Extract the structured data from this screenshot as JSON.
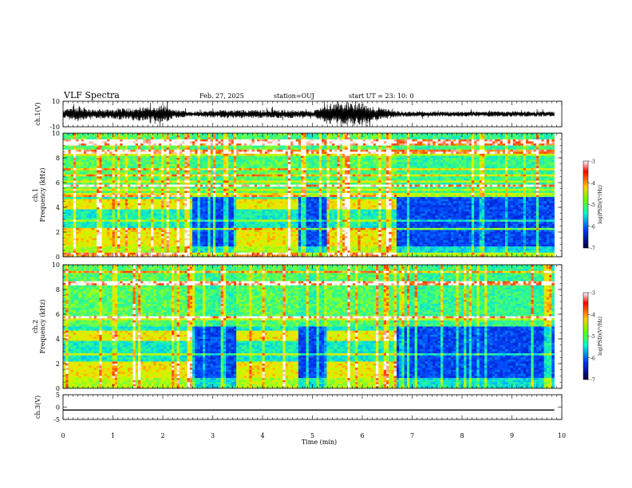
{
  "header": {
    "title": "VLF Spectra",
    "date": "Feb. 27, 2025",
    "station": "station=OUJ",
    "start": "start  UT  =   23: 10: 0"
  },
  "chart_data": [
    {
      "id": "ch1-waveform",
      "type": "line",
      "ylabel": "ch.1(V)",
      "ylim": [
        -10,
        10
      ],
      "yticks": [
        "10",
        "-10"
      ],
      "xlim": [
        0,
        10
      ],
      "data_end_min": 9.85,
      "envelope_min": [
        0,
        0.35,
        0.5,
        1.0,
        1.5,
        1.8,
        2.0,
        2.2,
        2.6,
        3.0,
        3.4,
        4.0,
        4.5,
        4.75,
        5.0,
        5.3,
        5.7,
        6.0,
        6.3,
        6.7,
        7.0,
        8.0,
        9.0,
        9.85
      ],
      "envelope_amp_v": [
        3.2,
        6.5,
        3.8,
        4.0,
        5.5,
        5.2,
        7.5,
        3.5,
        2.0,
        3.0,
        3.4,
        3.2,
        3.5,
        2.8,
        2.2,
        8.0,
        9.0,
        8.5,
        5.5,
        2.5,
        2.2,
        2.0,
        2.2,
        2.0
      ]
    },
    {
      "id": "ch1-spectrogram",
      "type": "heatmap",
      "ylabel": "ch.1\nFrequency (kHz)",
      "ylim": [
        0,
        10
      ],
      "yticks": [
        "0",
        "2",
        "4",
        "6",
        "8",
        "10"
      ],
      "xlim": [
        0,
        10
      ],
      "data_end_min": 9.85,
      "colorbar": {
        "label": "log(PSD)(V²/Hz)",
        "range": [
          -7,
          -3
        ],
        "ticks": [
          "-3",
          "-4",
          "-5",
          "-6",
          "-7"
        ]
      },
      "segments_min": [
        {
          "start": 0.0,
          "end": 2.6,
          "activity": "high"
        },
        {
          "start": 2.6,
          "end": 3.45,
          "activity": "low"
        },
        {
          "start": 3.45,
          "end": 4.7,
          "activity": "high"
        },
        {
          "start": 4.7,
          "end": 5.3,
          "activity": "low"
        },
        {
          "start": 5.3,
          "end": 6.7,
          "activity": "high"
        },
        {
          "start": 6.7,
          "end": 9.85,
          "activity": "low"
        }
      ]
    },
    {
      "id": "ch2-spectrogram",
      "type": "heatmap",
      "ylabel": "ch.2\nFrequency (kHz)",
      "ylim": [
        0,
        10
      ],
      "yticks": [
        "0",
        "2",
        "4",
        "6",
        "8",
        "10"
      ],
      "xlim": [
        0,
        10
      ],
      "data_end_min": 9.85,
      "colorbar": {
        "label": "log(PSD)(V²/Hz)",
        "range": [
          -7,
          -3
        ],
        "ticks": [
          "-3",
          "-4",
          "-5",
          "-6",
          "-7"
        ]
      },
      "segments_min": [
        {
          "start": 0.0,
          "end": 2.6,
          "activity": "high"
        },
        {
          "start": 2.6,
          "end": 3.45,
          "activity": "low"
        },
        {
          "start": 3.45,
          "end": 4.7,
          "activity": "high"
        },
        {
          "start": 4.7,
          "end": 5.3,
          "activity": "low"
        },
        {
          "start": 5.3,
          "end": 6.7,
          "activity": "high"
        },
        {
          "start": 6.7,
          "end": 9.85,
          "activity": "low"
        }
      ]
    },
    {
      "id": "ch3-waveform",
      "type": "line",
      "ylabel": "ch.3(V)",
      "ylim": [
        -5,
        5
      ],
      "yticks": [
        "5",
        "0",
        "-5"
      ],
      "xlim": [
        0,
        10
      ],
      "x": [
        0,
        9.85
      ],
      "values": [
        -1.2,
        -1.2
      ]
    }
  ],
  "xaxis": {
    "label": "Time  (min)",
    "ticks": [
      "0",
      "1",
      "2",
      "3",
      "4",
      "5",
      "6",
      "7",
      "8",
      "9",
      "10"
    ]
  }
}
